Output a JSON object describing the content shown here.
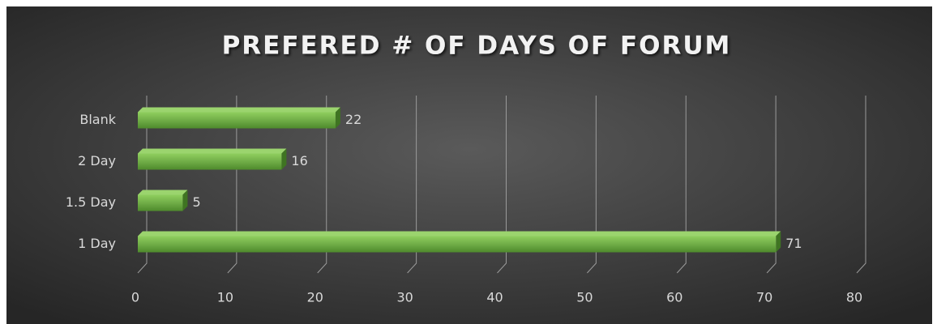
{
  "chart_data": {
    "type": "bar",
    "orientation": "horizontal",
    "title": "PREFERED # OF DAYS OF FORUM",
    "categories": [
      "Blank",
      "2 Day",
      "1.5 Day",
      "1 Day"
    ],
    "values": [
      22,
      16,
      5,
      71
    ],
    "color": "#70ad47",
    "xlim": [
      0,
      80
    ],
    "xticks": [
      0,
      10,
      20,
      30,
      40,
      50,
      60,
      70,
      80
    ],
    "grid": true
  }
}
